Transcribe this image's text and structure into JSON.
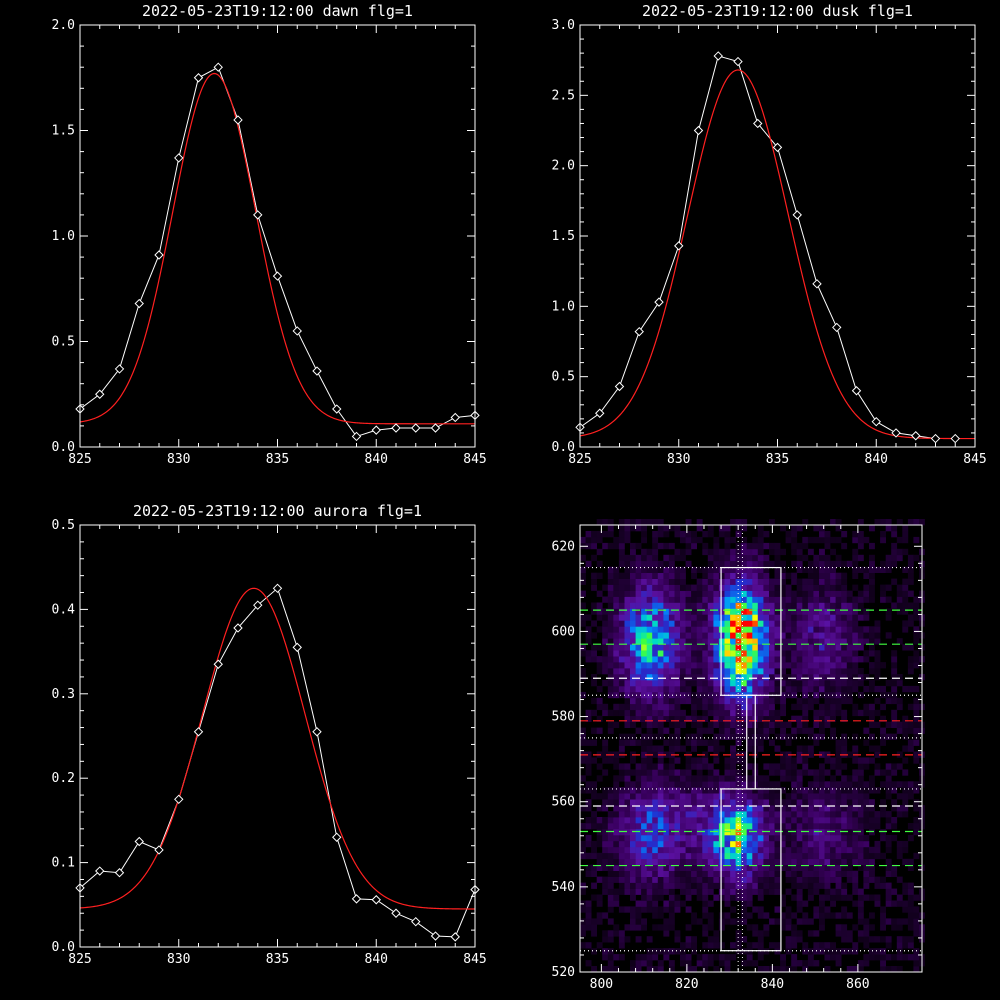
{
  "chart_data": [
    {
      "type": "line",
      "title": "2022-05-23T19:12:00 dawn flg=1",
      "xlim": [
        825,
        845
      ],
      "ylim": [
        0,
        2.0
      ],
      "xticks": [
        "825",
        "830",
        "835",
        "840",
        "845"
      ],
      "yticks": [
        "0.0",
        "0.5",
        "1.0",
        "1.5",
        "2.0"
      ],
      "observed": {
        "x": [
          825,
          826,
          827,
          828,
          829,
          830,
          831,
          832,
          833,
          834,
          835,
          836,
          837,
          838,
          839,
          840,
          841,
          842,
          843,
          844,
          845
        ],
        "y": [
          0.18,
          0.25,
          0.37,
          0.68,
          0.91,
          1.37,
          1.75,
          1.8,
          1.55,
          1.1,
          0.81,
          0.55,
          0.36,
          0.18,
          0.05,
          0.08,
          0.09,
          0.09,
          0.09,
          0.14,
          0.15
        ],
        "color": "#ffffff"
      },
      "fit": {
        "amplitude": 1.66,
        "center": 831.8,
        "sigma": 2.1,
        "offset": 0.11,
        "color": "#ff2020"
      }
    },
    {
      "type": "line",
      "title": "2022-05-23T19:12:00 dusk flg=1",
      "xlim": [
        825,
        845
      ],
      "ylim": [
        0,
        3.0
      ],
      "xticks": [
        "825",
        "830",
        "835",
        "840",
        "845"
      ],
      "yticks": [
        "0.0",
        "0.5",
        "1.0",
        "1.5",
        "2.0",
        "2.5",
        "3.0"
      ],
      "observed": {
        "x": [
          825,
          826,
          827,
          828,
          829,
          830,
          831,
          832,
          833,
          834,
          835,
          836,
          837,
          838,
          839,
          840,
          841,
          842,
          843,
          844
        ],
        "y": [
          0.14,
          0.24,
          0.43,
          0.82,
          1.03,
          1.43,
          2.25,
          2.78,
          2.74,
          2.3,
          2.13,
          1.65,
          1.16,
          0.85,
          0.4,
          0.18,
          0.1,
          0.08,
          0.06,
          0.06
        ],
        "color": "#ffffff"
      },
      "fit": {
        "amplitude": 2.62,
        "center": 833.0,
        "sigma": 2.55,
        "offset": 0.06,
        "color": "#ff2020"
      }
    },
    {
      "type": "line",
      "title": "2022-05-23T19:12:00 aurora flg=1",
      "xlim": [
        825,
        845
      ],
      "ylim": [
        0,
        0.5
      ],
      "xticks": [
        "825",
        "830",
        "835",
        "840",
        "845"
      ],
      "yticks": [
        "0.0",
        "0.1",
        "0.2",
        "0.3",
        "0.4",
        "0.5"
      ],
      "observed": {
        "x": [
          825,
          826,
          827,
          828,
          829,
          830,
          831,
          832,
          833,
          834,
          835,
          836,
          837,
          838,
          839,
          840,
          841,
          842,
          843,
          844,
          845
        ],
        "y": [
          0.07,
          0.09,
          0.088,
          0.125,
          0.115,
          0.175,
          0.255,
          0.335,
          0.378,
          0.405,
          0.425,
          0.355,
          0.255,
          0.13,
          0.057,
          0.056,
          0.04,
          0.03,
          0.013,
          0.012,
          0.068
        ],
        "color": "#ffffff"
      },
      "fit": {
        "amplitude": 0.38,
        "center": 833.8,
        "sigma": 2.6,
        "offset": 0.045,
        "color": "#ff2020"
      }
    },
    {
      "type": "heatmap",
      "xlim": [
        795,
        875
      ],
      "ylim": [
        520,
        625
      ],
      "xticks": [
        "800",
        "820",
        "840",
        "860"
      ],
      "yticks": [
        "520",
        "540",
        "560",
        "580",
        "600",
        "620"
      ],
      "colormap": [
        "#000000",
        "#3a0060",
        "#5a10a0",
        "#2030d0",
        "#0090ff",
        "#00e0c0",
        "#40ff40",
        "#ffff00",
        "#ff8000",
        "#ff0000"
      ],
      "blobs": [
        {
          "x": 811,
          "y": 597,
          "sx": 4.5,
          "sy": 8,
          "amp": 0.5
        },
        {
          "x": 832,
          "y": 597,
          "sx": 4,
          "sy": 8.5,
          "amp": 0.85
        },
        {
          "x": 833,
          "y": 602,
          "sx": 2,
          "sy": 2.5,
          "amp": 0.25
        },
        {
          "x": 811,
          "y": 552,
          "sx": 5,
          "sy": 7,
          "amp": 0.3
        },
        {
          "x": 831,
          "y": 551,
          "sx": 4,
          "sy": 6,
          "amp": 0.6
        },
        {
          "x": 851,
          "y": 598,
          "sx": 5,
          "sy": 8,
          "amp": 0.15
        },
        {
          "x": 851,
          "y": 552,
          "sx": 6,
          "sy": 7,
          "amp": 0.12
        },
        {
          "x": 822,
          "y": 555,
          "sx": 4,
          "sy": 6,
          "amp": 0.1
        }
      ],
      "boxes": [
        {
          "x0": 828,
          "x1": 842,
          "y0": 585,
          "y1": 615,
          "color": "#ffffff"
        },
        {
          "x0": 834,
          "x1": 836,
          "y0": 563,
          "y1": 585,
          "color": "#ffffff"
        },
        {
          "x0": 828,
          "x1": 842,
          "y0": 525,
          "y1": 563,
          "color": "#ffffff"
        }
      ],
      "hlines": [
        {
          "y": 615,
          "color": "#ffffff",
          "style": "dotted"
        },
        {
          "y": 605,
          "color": "#40ff40",
          "style": "dashed"
        },
        {
          "y": 597,
          "color": "#40ff40",
          "style": "dashed"
        },
        {
          "y": 589,
          "color": "#ffffff",
          "style": "dashed"
        },
        {
          "y": 585,
          "color": "#ffffff",
          "style": "dotted"
        },
        {
          "y": 579,
          "color": "#ff2020",
          "style": "dashed"
        },
        {
          "y": 575,
          "color": "#ffffff",
          "style": "dotted"
        },
        {
          "y": 571,
          "color": "#ff2020",
          "style": "dashed"
        },
        {
          "y": 563,
          "color": "#ffffff",
          "style": "dotted"
        },
        {
          "y": 559,
          "color": "#ffffff",
          "style": "dashed"
        },
        {
          "y": 553,
          "color": "#40ff40",
          "style": "dashed"
        },
        {
          "y": 545,
          "color": "#40ff40",
          "style": "dashed"
        },
        {
          "y": 525,
          "color": "#ffffff",
          "style": "dotted"
        }
      ],
      "vlines": [
        {
          "x": 832,
          "color": "#ffffff",
          "style": "dotted"
        },
        {
          "x": 833,
          "color": "#ffffff",
          "style": "dotted"
        }
      ]
    }
  ]
}
